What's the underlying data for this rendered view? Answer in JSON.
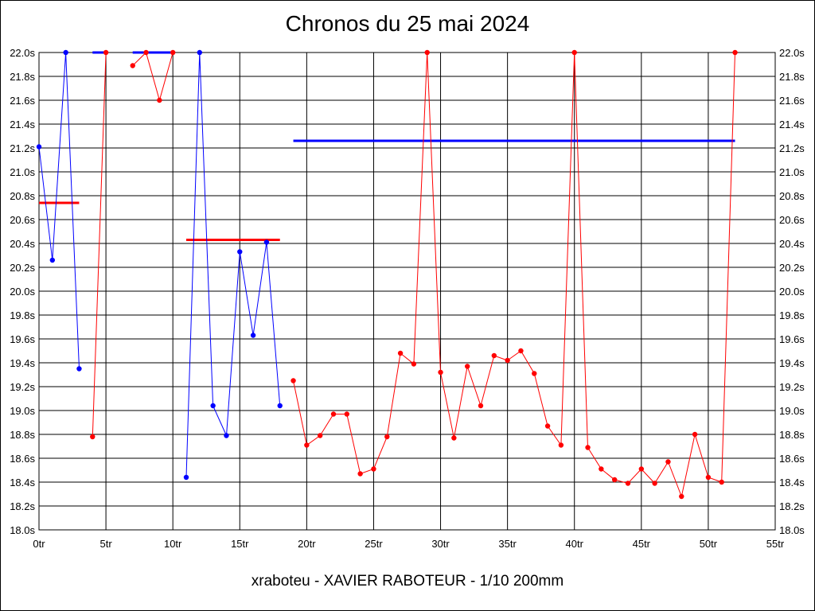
{
  "chart_data": {
    "type": "line",
    "title": "Chronos du 25 mai 2024",
    "footer": "xraboteu - XAVIER RABOTEUR - 1/10 200mm",
    "x_tick_labels": [
      "0tr",
      "5tr",
      "10tr",
      "15tr",
      "20tr",
      "25tr",
      "30tr",
      "35tr",
      "40tr",
      "45tr",
      "50tr",
      "55tr"
    ],
    "x_ticks": [
      0,
      5,
      10,
      15,
      20,
      25,
      30,
      35,
      40,
      45,
      50,
      55
    ],
    "y_tick_labels": [
      "18.0s",
      "18.2s",
      "18.4s",
      "18.6s",
      "18.8s",
      "19.0s",
      "19.2s",
      "19.4s",
      "19.6s",
      "19.8s",
      "20.0s",
      "20.2s",
      "20.4s",
      "20.6s",
      "20.8s",
      "21.0s",
      "21.2s",
      "21.4s",
      "21.6s",
      "21.8s",
      "22.0s"
    ],
    "y_ticks": [
      18.0,
      18.2,
      18.4,
      18.6,
      18.8,
      19.0,
      19.2,
      19.4,
      19.6,
      19.8,
      20.0,
      20.2,
      20.4,
      20.6,
      20.8,
      21.0,
      21.2,
      21.4,
      21.6,
      21.8,
      22.0
    ],
    "xlim": [
      0,
      55
    ],
    "ylim": [
      18.0,
      22.0
    ],
    "grid": true,
    "segments": [
      {
        "color": "#0000ff",
        "points": [
          [
            0,
            21.21
          ],
          [
            1,
            20.26
          ],
          [
            2,
            22.0
          ],
          [
            3,
            19.35
          ]
        ]
      },
      {
        "color": "#ff0000",
        "points": [
          [
            4,
            18.78
          ],
          [
            5,
            22.0
          ]
        ]
      },
      {
        "color": "#ff0000",
        "points": [
          [
            7,
            21.89
          ],
          [
            8,
            22.0
          ],
          [
            9,
            21.6
          ],
          [
            10,
            22.0
          ]
        ]
      },
      {
        "color": "#0000ff",
        "points": [
          [
            11,
            18.44
          ],
          [
            12,
            22.0
          ],
          [
            13,
            19.04
          ],
          [
            14,
            18.79
          ],
          [
            15,
            20.33
          ],
          [
            16,
            19.63
          ],
          [
            17,
            20.41
          ],
          [
            18,
            19.04
          ]
        ]
      },
      {
        "color": "#ff0000",
        "points": [
          [
            19,
            19.25
          ],
          [
            20,
            18.71
          ],
          [
            21,
            18.79
          ],
          [
            22,
            18.97
          ],
          [
            23,
            18.97
          ],
          [
            24,
            18.47
          ],
          [
            25,
            18.51
          ],
          [
            26,
            18.78
          ],
          [
            27,
            19.48
          ],
          [
            28,
            19.39
          ],
          [
            29,
            22.0
          ],
          [
            30,
            19.32
          ],
          [
            31,
            18.77
          ],
          [
            32,
            19.37
          ],
          [
            33,
            19.04
          ],
          [
            34,
            19.46
          ],
          [
            35,
            19.42
          ],
          [
            36,
            19.5
          ],
          [
            37,
            19.31
          ],
          [
            38,
            18.87
          ],
          [
            39,
            18.71
          ],
          [
            40,
            22.0
          ],
          [
            41,
            18.69
          ],
          [
            42,
            18.51
          ],
          [
            43,
            18.42
          ],
          [
            44,
            18.39
          ],
          [
            45,
            18.51
          ],
          [
            46,
            18.39
          ],
          [
            47,
            18.57
          ],
          [
            48,
            18.28
          ],
          [
            49,
            18.8
          ],
          [
            50,
            18.44
          ],
          [
            51,
            18.4
          ],
          [
            52,
            22.0
          ]
        ]
      }
    ],
    "averages": [
      {
        "color": "#ff0000",
        "x": [
          0,
          3
        ],
        "y": 20.74
      },
      {
        "color": "#0000ff",
        "x": [
          4,
          5
        ],
        "y": 22.0
      },
      {
        "color": "#0000ff",
        "x": [
          7,
          10
        ],
        "y": 22.0
      },
      {
        "color": "#ff0000",
        "x": [
          11,
          18
        ],
        "y": 20.43
      },
      {
        "color": "#0000ff",
        "x": [
          19,
          52
        ],
        "y": 21.26
      }
    ]
  }
}
